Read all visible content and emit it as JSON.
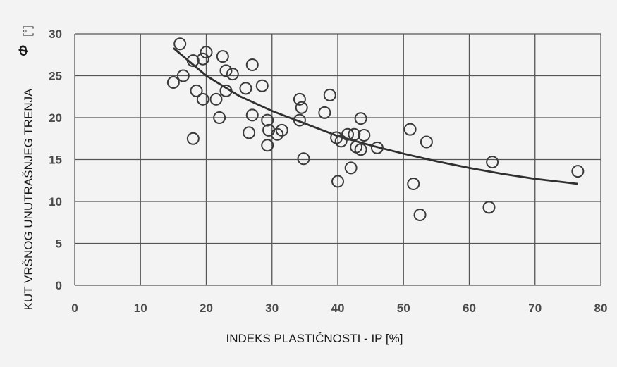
{
  "chart_data": {
    "type": "scatter",
    "xlabel": "INDEKS PLASTIČNOSTI - IP [%]",
    "ylabel": "KUT VRŠNOG UNUTRAŠNJEG TRENJA",
    "ylabel_symbol": "Φ",
    "ylabel_unit": "[°]",
    "xlim": [
      0,
      80
    ],
    "ylim": [
      0,
      30
    ],
    "x_ticks": [
      "0",
      "10",
      "20",
      "30",
      "40",
      "50",
      "60",
      "70",
      "80"
    ],
    "y_ticks": [
      "0",
      "5",
      "10",
      "15",
      "20",
      "25",
      "30"
    ],
    "grid": true,
    "points": [
      [
        16,
        28.8
      ],
      [
        15,
        24.2
      ],
      [
        16.5,
        25.0
      ],
      [
        18,
        26.8
      ],
      [
        18.5,
        23.2
      ],
      [
        19.5,
        22.2
      ],
      [
        19.5,
        27.0
      ],
      [
        20,
        27.8
      ],
      [
        21.5,
        22.2
      ],
      [
        22,
        20.0
      ],
      [
        18,
        17.5
      ],
      [
        22.5,
        27.3
      ],
      [
        23,
        25.6
      ],
      [
        23,
        23.2
      ],
      [
        24,
        25.2
      ],
      [
        26,
        23.5
      ],
      [
        27,
        26.3
      ],
      [
        27,
        20.3
      ],
      [
        26.5,
        18.2
      ],
      [
        28.5,
        23.8
      ],
      [
        29.3,
        19.7
      ],
      [
        29.5,
        18.5
      ],
      [
        29.3,
        16.7
      ],
      [
        30.8,
        18.0
      ],
      [
        31.5,
        18.5
      ],
      [
        34.2,
        22.2
      ],
      [
        34.5,
        21.2
      ],
      [
        34.2,
        19.7
      ],
      [
        34.8,
        15.1
      ],
      [
        38,
        20.6
      ],
      [
        38.8,
        22.7
      ],
      [
        39.8,
        17.6
      ],
      [
        40,
        12.4
      ],
      [
        40.5,
        17.2
      ],
      [
        41.5,
        18.0
      ],
      [
        42,
        14.0
      ],
      [
        42.5,
        18.0
      ],
      [
        42.8,
        16.5
      ],
      [
        43.5,
        16.2
      ],
      [
        43.5,
        19.9
      ],
      [
        44,
        17.9
      ],
      [
        46,
        16.4
      ],
      [
        51,
        18.6
      ],
      [
        51.5,
        12.1
      ],
      [
        52.5,
        8.4
      ],
      [
        53.5,
        17.1
      ],
      [
        63,
        9.3
      ],
      [
        63.5,
        14.7
      ],
      [
        76.5,
        13.6
      ]
    ],
    "trend": {
      "type": "power",
      "x": [
        15,
        20,
        25,
        30,
        35,
        40,
        45,
        50,
        55,
        60,
        65,
        70,
        76.5
      ],
      "y": [
        28.3,
        25.0,
        22.6,
        20.8,
        19.3,
        17.8,
        16.7,
        15.7,
        14.8,
        14.0,
        13.3,
        12.7,
        12.1
      ]
    }
  }
}
